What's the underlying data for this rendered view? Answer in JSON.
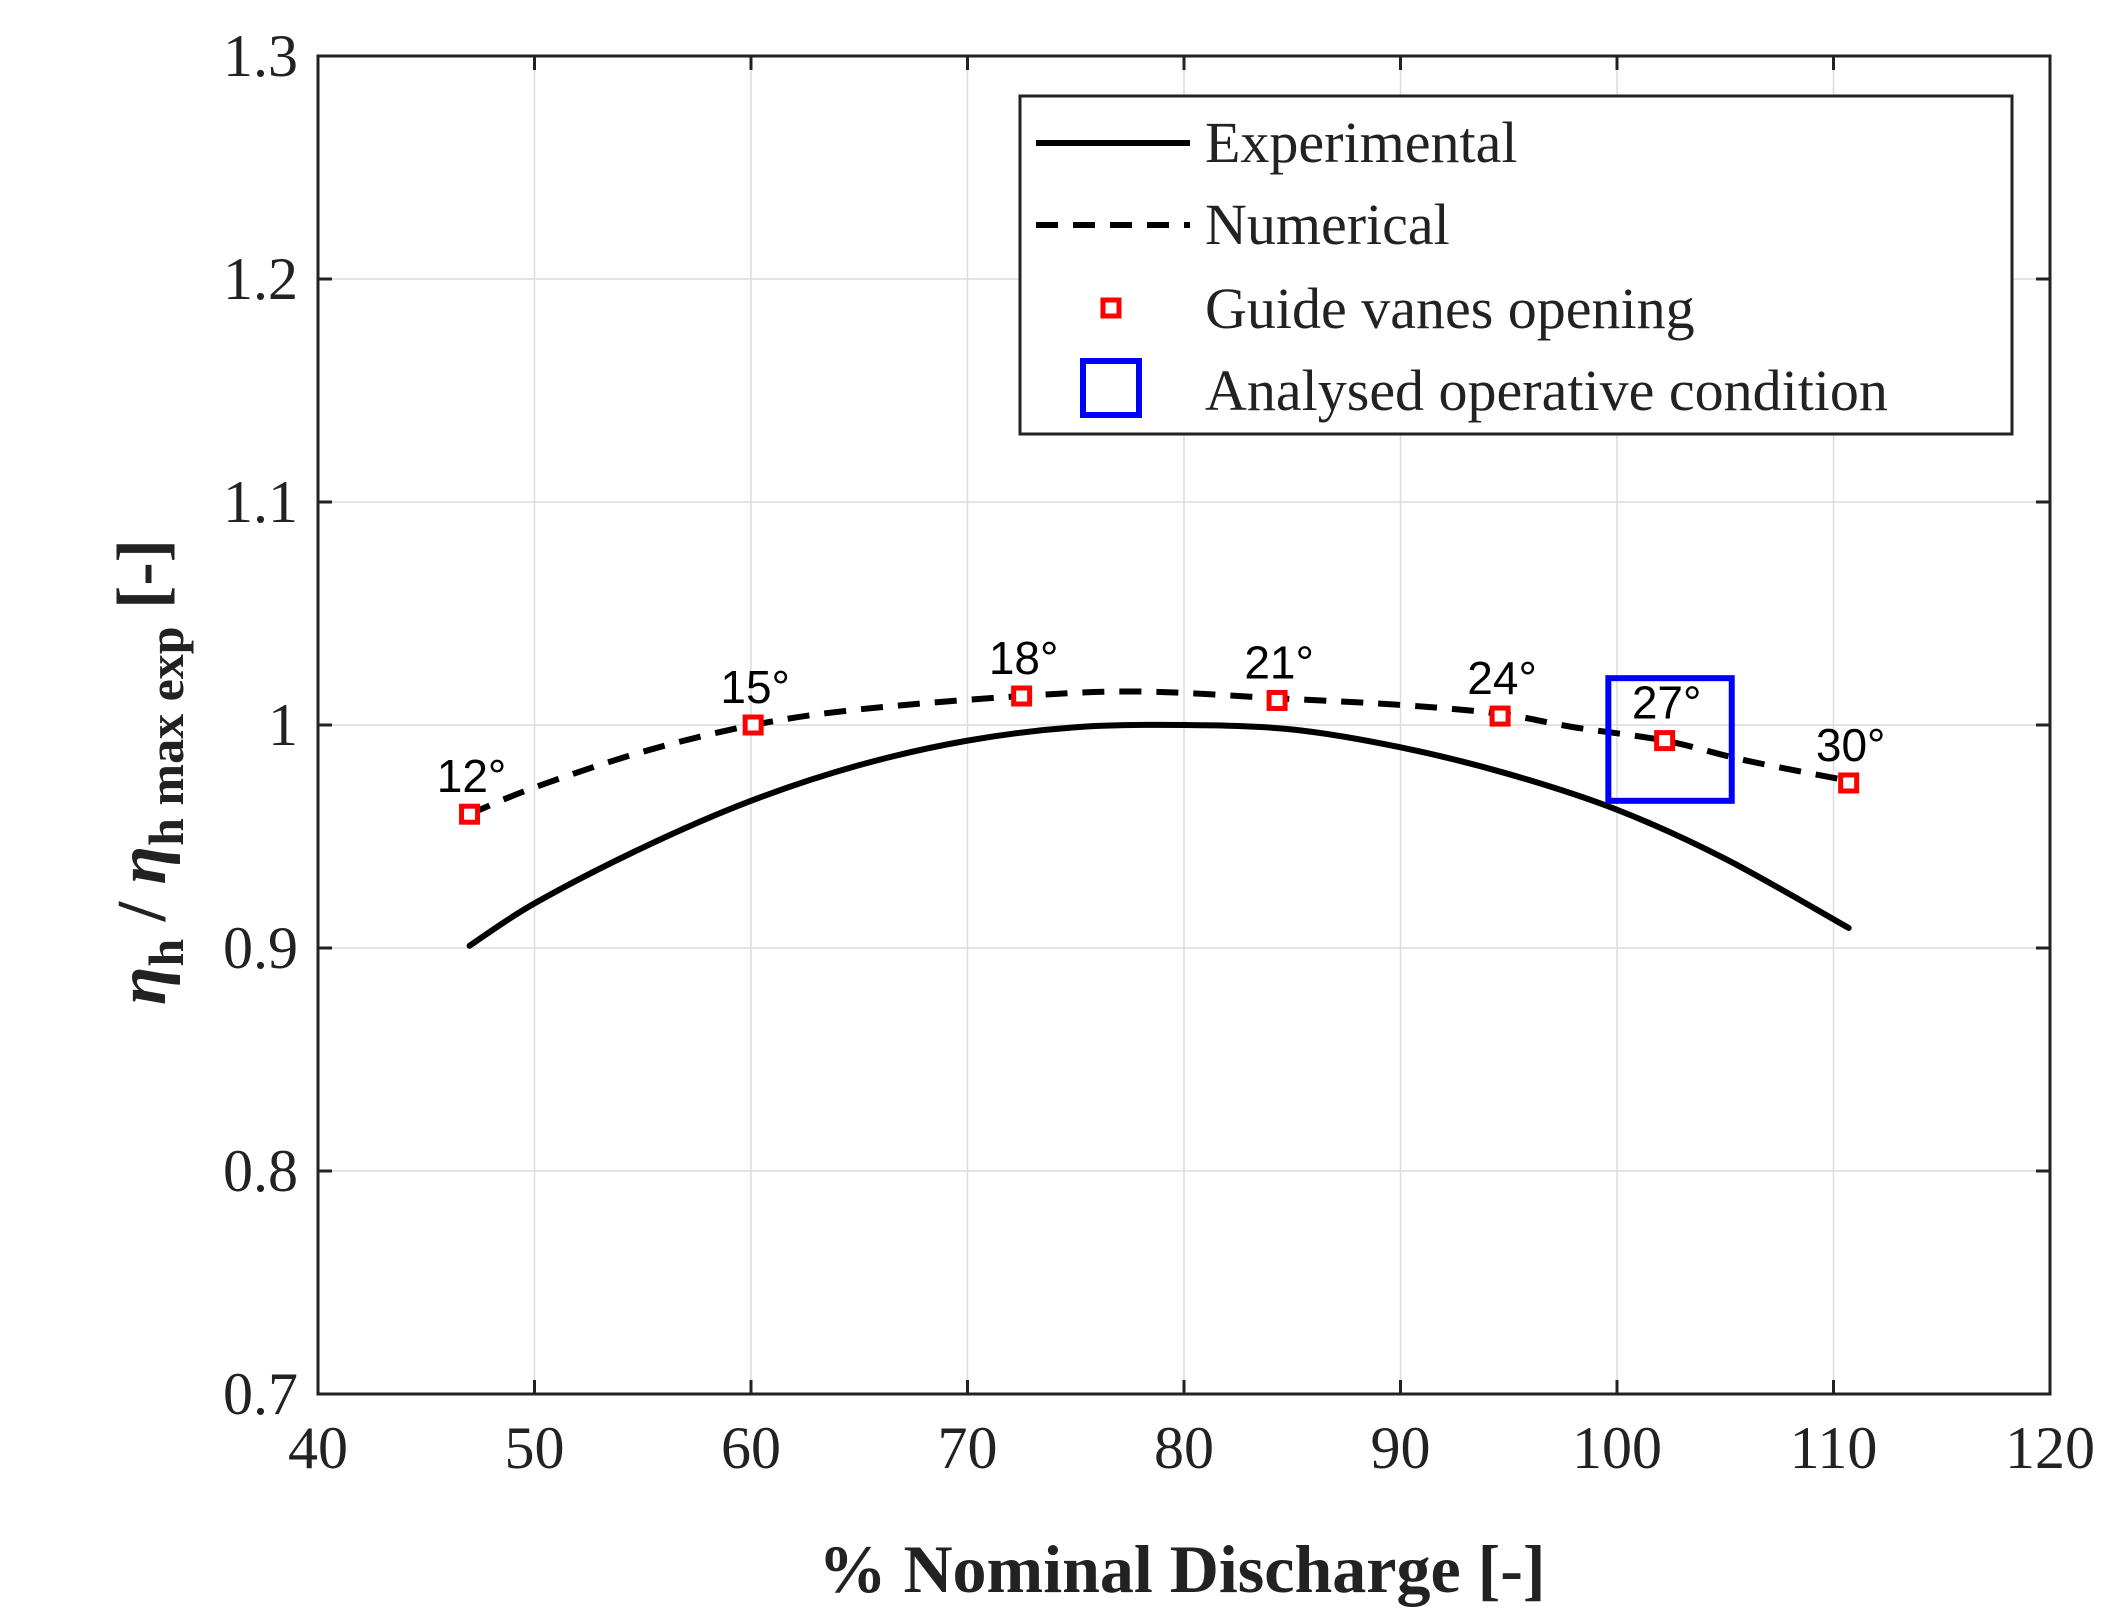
{
  "chart_data": {
    "type": "line",
    "title": "",
    "xlabel": "% Nominal Discharge [-]",
    "ylabel": {
      "eta1": "η",
      "sub1": "h",
      "slash": " / ",
      "eta2": "η",
      "sub2": "h max exp",
      "unit": " [-]"
    },
    "xlim": [
      40,
      120
    ],
    "ylim": [
      0.7,
      1.3
    ],
    "xticks": [
      40,
      50,
      60,
      70,
      80,
      90,
      100,
      110,
      120
    ],
    "yticks": [
      0.7,
      0.8,
      0.9,
      1,
      1.1,
      1.2,
      1.3
    ],
    "xtick_labels": [
      "40",
      "50",
      "60",
      "70",
      "80",
      "90",
      "100",
      "110",
      "120"
    ],
    "ytick_labels": [
      "0.7",
      "0.8",
      "0.9",
      "1",
      "1.1",
      "1.2",
      "1.3"
    ],
    "grid": true,
    "legend_position": "top-right",
    "series": [
      {
        "name": "Experimental",
        "style": "solid",
        "color": "#000000",
        "x": [
          47,
          50,
          55,
          60,
          65,
          70,
          75,
          80,
          85,
          90,
          95,
          100,
          105,
          110.7
        ],
        "y": [
          0.901,
          0.92,
          0.945,
          0.966,
          0.982,
          0.993,
          0.999,
          1.0,
          0.998,
          0.99,
          0.978,
          0.962,
          0.94,
          0.909
        ]
      },
      {
        "name": "Numerical",
        "style": "dashed",
        "color": "#000000",
        "x": [
          47,
          50,
          55,
          60.1,
          65,
          72.5,
          78,
          84.3,
          90,
          94.6,
          98,
          102.2,
          106,
          110.7
        ],
        "y": [
          0.96,
          0.972,
          0.988,
          1.0,
          1.007,
          1.013,
          1.015,
          1.012,
          1.009,
          1.005,
          0.999,
          0.993,
          0.984,
          0.975
        ]
      },
      {
        "name": "Guide vanes opening",
        "style": "marker",
        "color": "#ff0000",
        "x": [
          47,
          60.1,
          72.5,
          84.3,
          94.6,
          102.2,
          110.7
        ],
        "y": [
          0.96,
          1.0,
          1.013,
          1.011,
          1.004,
          0.993,
          0.974
        ],
        "labels": [
          "12°",
          "15°",
          "18°",
          "21°",
          "24°",
          "27°",
          "30°"
        ]
      },
      {
        "name": "Analysed operative condition",
        "style": "box",
        "color": "#0000ff",
        "x_range": [
          99.6,
          105.3
        ],
        "y_range": [
          0.966,
          1.021
        ]
      }
    ],
    "legend": [
      "Experimental",
      "Numerical",
      "Guide vanes opening",
      "Analysed operative condition"
    ]
  }
}
